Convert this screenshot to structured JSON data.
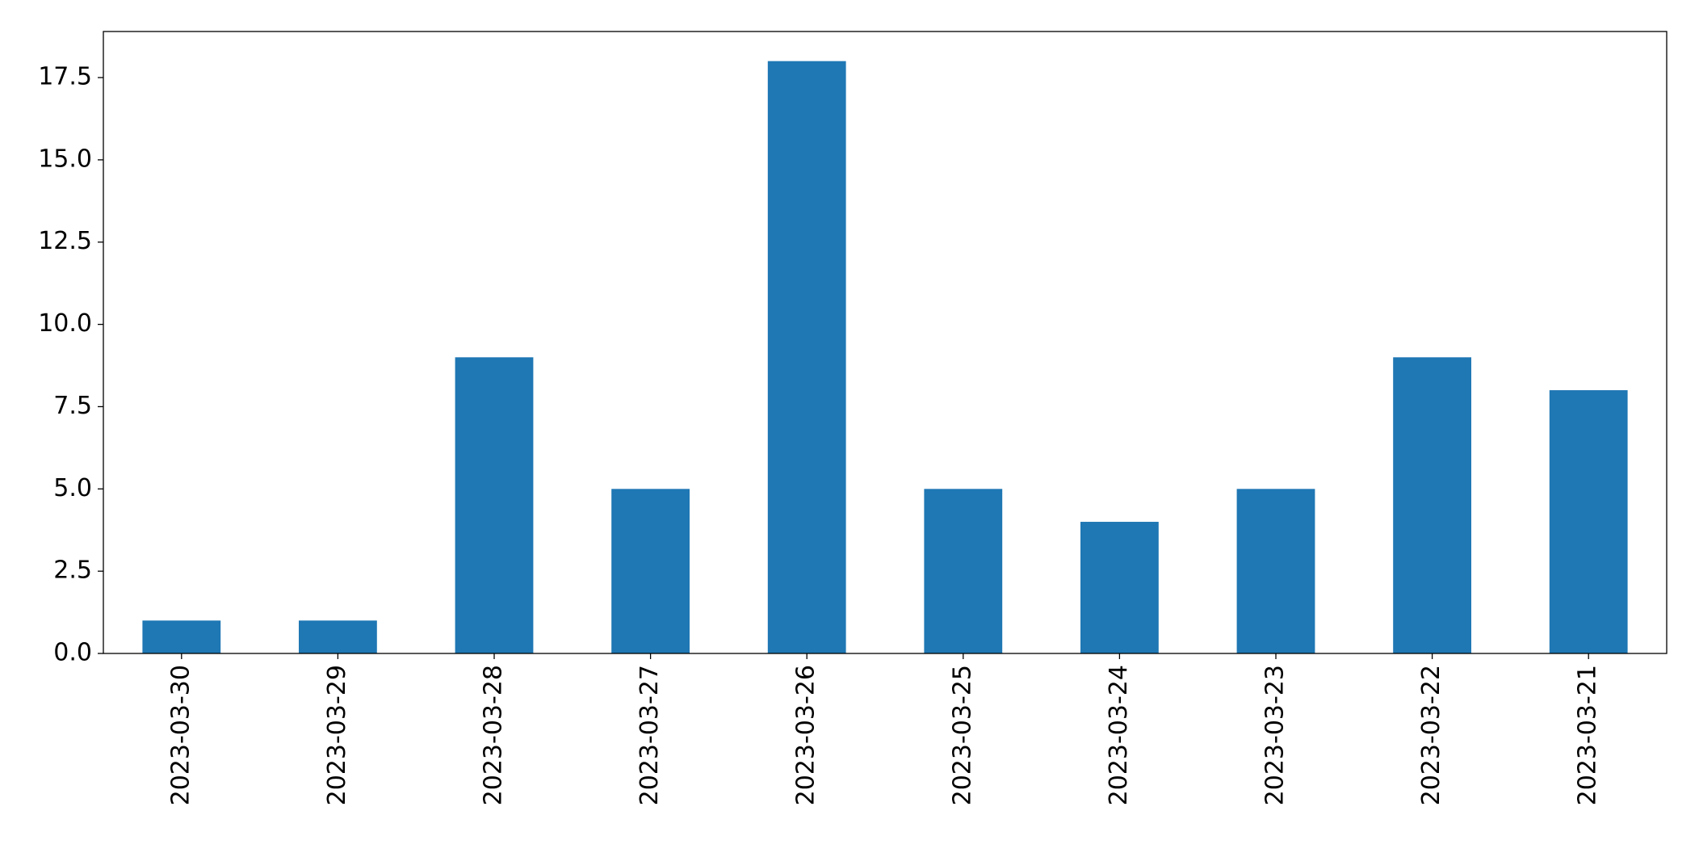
{
  "chart_data": {
    "type": "bar",
    "categories": [
      "2023-03-30",
      "2023-03-29",
      "2023-03-28",
      "2023-03-27",
      "2023-03-26",
      "2023-03-25",
      "2023-03-24",
      "2023-03-23",
      "2023-03-22",
      "2023-03-21"
    ],
    "values": [
      1,
      1,
      9,
      5,
      18,
      5,
      4,
      5,
      9,
      8
    ],
    "color": "#1f77b4",
    "ylim": [
      0,
      18.9
    ],
    "yticks": [
      {
        "value": 0,
        "label": "0.0"
      },
      2.5,
      {
        "value": 5,
        "label": "5.0"
      },
      7.5,
      {
        "value": 10,
        "label": "10.0"
      },
      12.5,
      {
        "value": 15,
        "label": "15.0"
      },
      17.5
    ],
    "grid": false
  }
}
